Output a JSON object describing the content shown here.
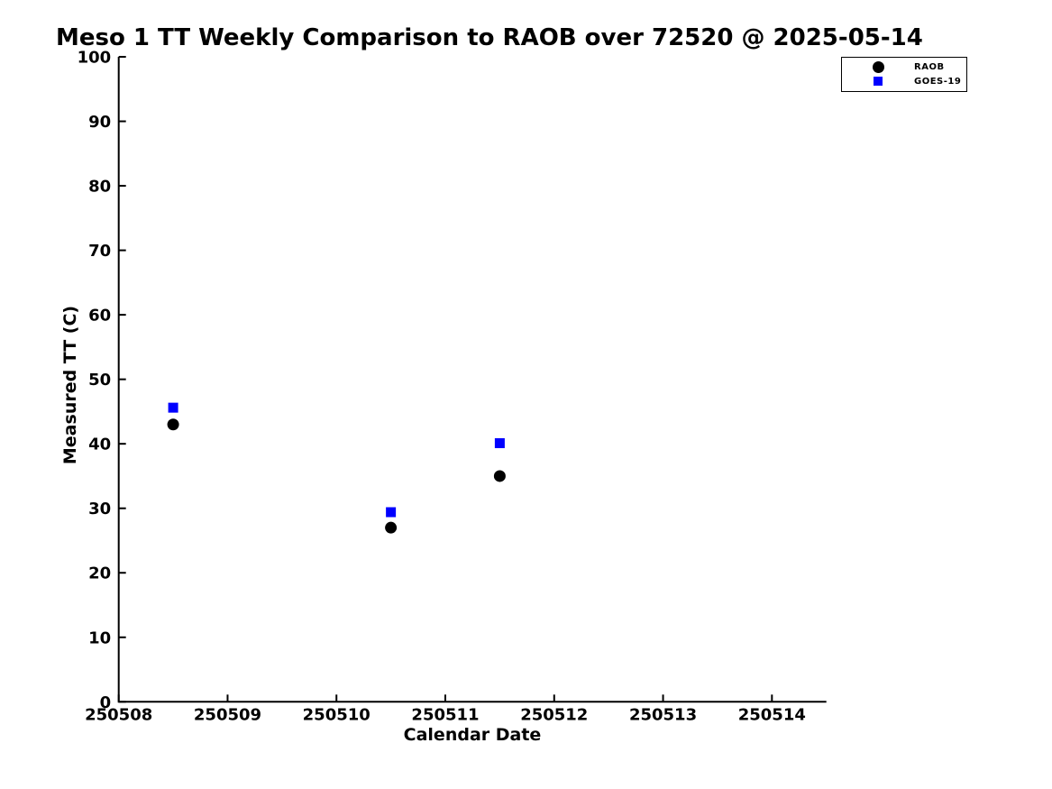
{
  "chart_data": {
    "type": "scatter",
    "title": "Meso 1 TT Weekly Comparison to RAOB over 72520 @ 2025-05-14",
    "xlabel": "Calendar Date",
    "ylabel": "Measured TT (C)",
    "xlim": [
      250508,
      250514.5
    ],
    "ylim": [
      0,
      100
    ],
    "xticks": [
      250508,
      250509,
      250510,
      250511,
      250512,
      250513,
      250514
    ],
    "yticks": [
      0,
      10,
      20,
      30,
      40,
      50,
      60,
      70,
      80,
      90,
      100
    ],
    "grid": false,
    "background_color": "#ffffff",
    "axis_color": "#000000",
    "legend_position": "top-right",
    "series": [
      {
        "name": "RAOB",
        "marker": "circle",
        "color": "#000000",
        "x": [
          250508.5,
          250510.5,
          250511.5
        ],
        "y": [
          43,
          27,
          35
        ]
      },
      {
        "name": "GOES-19",
        "marker": "square",
        "color": "#0000ff",
        "x": [
          250508.5,
          250510.5,
          250511.5
        ],
        "y": [
          45.6,
          29.4,
          40.1
        ]
      }
    ]
  }
}
